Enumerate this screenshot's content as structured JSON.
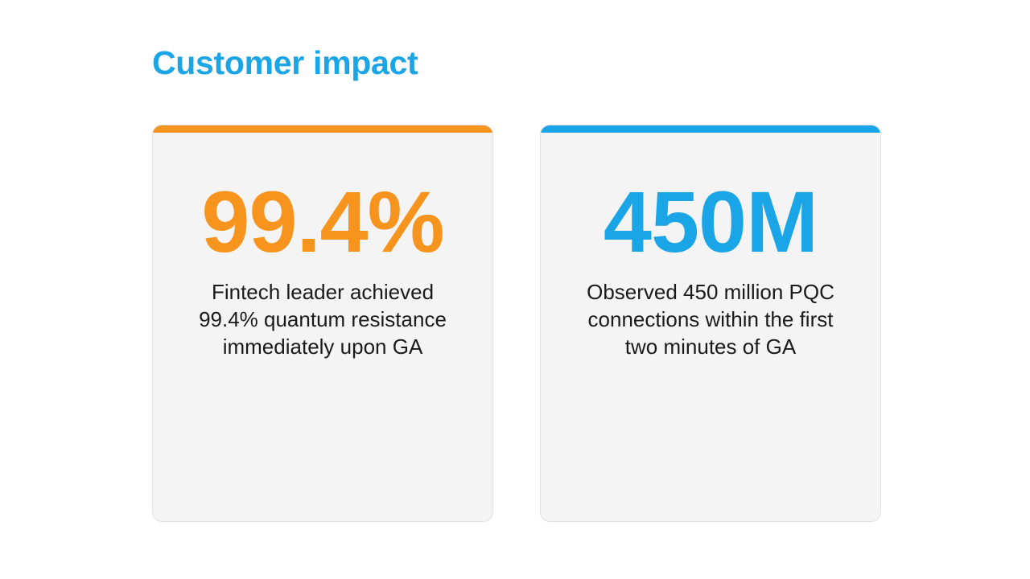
{
  "slide": {
    "title": "Customer impact"
  },
  "cards": [
    {
      "value": "99.4%",
      "description_lines": [
        "Fintech leader achieved",
        "99.4% quantum resistance",
        "immediately upon GA"
      ],
      "accent_color": "#f7941d"
    },
    {
      "value": "450M",
      "description_lines": [
        "Observed 450 million PQC",
        "connections within the first",
        "two minutes of GA"
      ],
      "accent_color": "#1aa5e6"
    }
  ]
}
